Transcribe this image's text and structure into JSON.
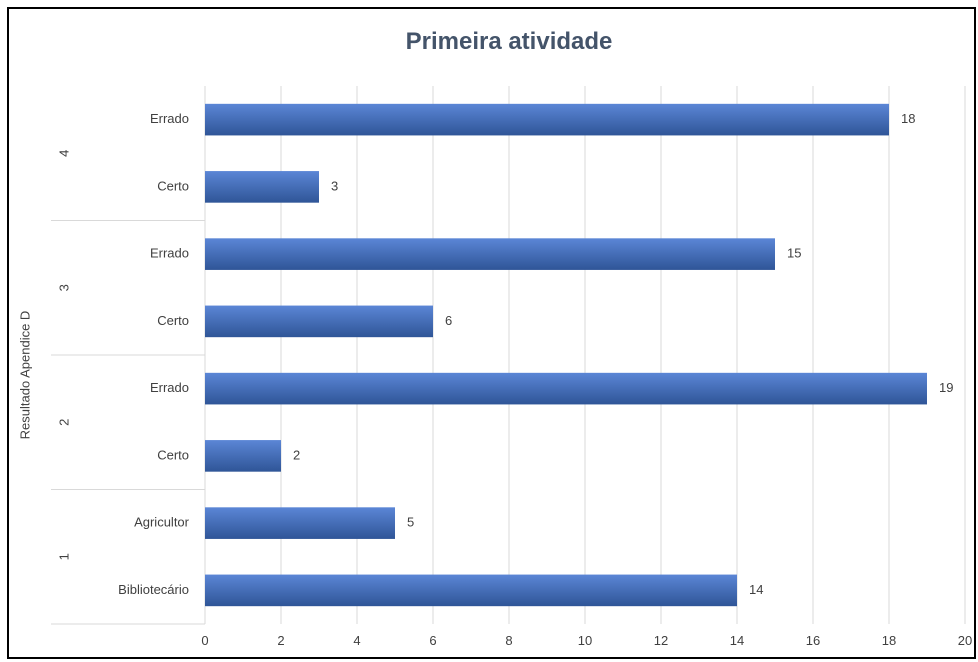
{
  "chart_data": {
    "type": "bar",
    "title": "Primeira atividade",
    "ylabel": "Resultado Apendice D",
    "xlabel": "",
    "xlim": [
      0,
      20
    ],
    "xticks": [
      0,
      2,
      4,
      6,
      8,
      10,
      12,
      14,
      16,
      18,
      20
    ],
    "grid": true,
    "legend": "none",
    "orientation": "horizontal",
    "groups": [
      {
        "name": "4",
        "categories": [
          "Errado",
          "Certo"
        ],
        "values": [
          18,
          3
        ]
      },
      {
        "name": "3",
        "categories": [
          "Errado",
          "Certo"
        ],
        "values": [
          15,
          6
        ]
      },
      {
        "name": "2",
        "categories": [
          "Errado",
          "Certo"
        ],
        "values": [
          19,
          2
        ]
      },
      {
        "name": "1",
        "categories": [
          "Agricultor",
          "Bibliotecário"
        ],
        "values": [
          5,
          14
        ]
      }
    ],
    "colors": {
      "bar": "#4472C4",
      "bar_dark": "#2F5597",
      "grid": "#D9D9D9",
      "text": "#404040",
      "title": "#44546A"
    }
  }
}
